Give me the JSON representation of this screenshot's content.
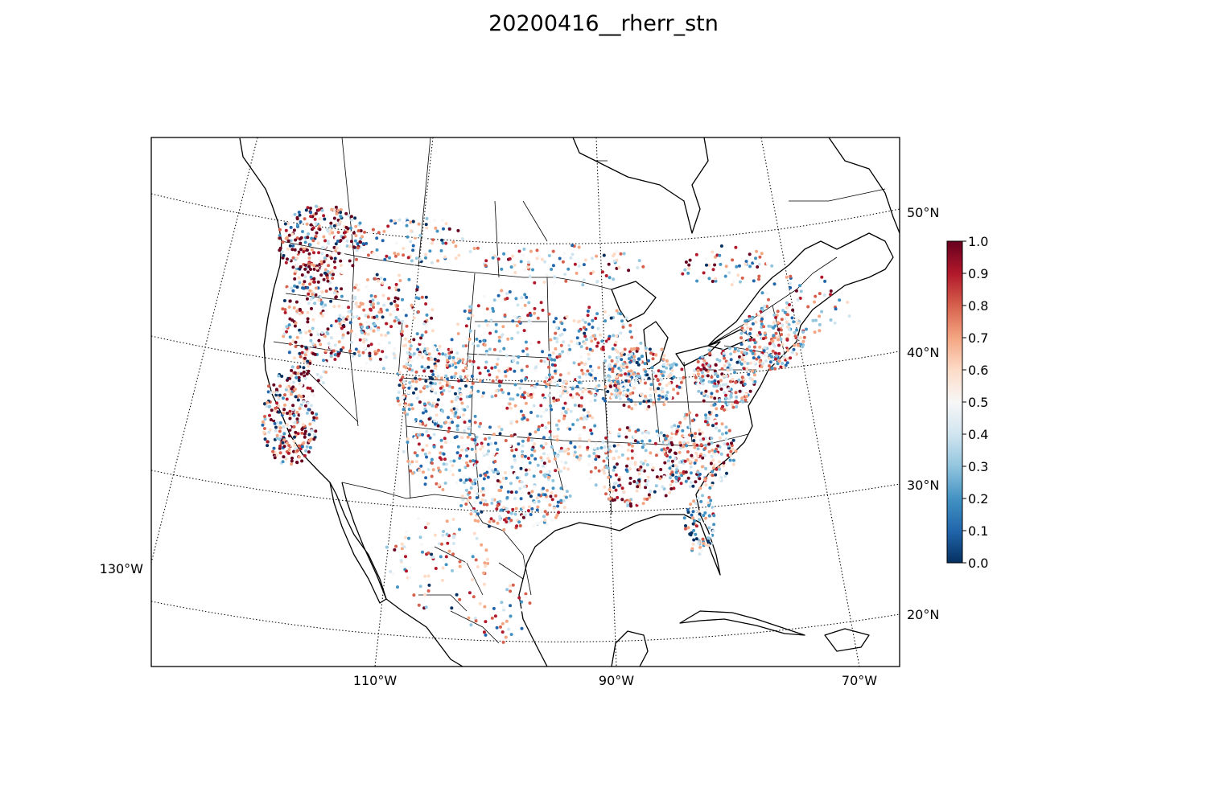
{
  "title": "20200416__rherr_stn",
  "map": {
    "projection": "conic",
    "lat_labels": [
      "50°N",
      "40°N",
      "30°N",
      "20°N"
    ],
    "lon_labels_bottom": [
      "110°W",
      "90°W",
      "70°W"
    ],
    "lon_label_left": "130°W",
    "gridline_style": "dotted",
    "gridline_color": "#000000",
    "coastline_color": "#000000"
  },
  "colorbar": {
    "colormap": "RdBu_r",
    "min": 0.0,
    "max": 1.0,
    "tick_labels": [
      "0.0",
      "0.1",
      "0.2",
      "0.3",
      "0.4",
      "0.5",
      "0.6",
      "0.7",
      "0.8",
      "0.9",
      "1.0"
    ],
    "colors": [
      "#053061",
      "#2166ac",
      "#4393c3",
      "#92c5de",
      "#d1e5f0",
      "#f7f7f7",
      "#fddbc7",
      "#f4a582",
      "#d6604d",
      "#b2182b",
      "#67001f"
    ]
  },
  "stations": {
    "description_visible": false,
    "value_range": [
      0.0,
      1.0
    ]
  }
}
